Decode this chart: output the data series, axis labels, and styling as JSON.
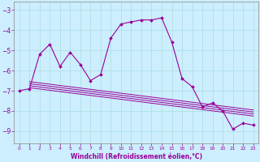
{
  "xlabel": "Windchill (Refroidissement éolien,°C)",
  "xlim": [
    -0.5,
    23.5
  ],
  "ylim": [
    -9.6,
    -2.6
  ],
  "xticks": [
    0,
    1,
    2,
    3,
    4,
    5,
    6,
    7,
    8,
    9,
    10,
    11,
    12,
    13,
    14,
    15,
    16,
    17,
    18,
    19,
    20,
    21,
    22,
    23
  ],
  "yticks": [
    -9,
    -8,
    -7,
    -6,
    -5,
    -4,
    -3
  ],
  "bg_color": "#cceeff",
  "line_color": "#990099",
  "data_y": [
    -7.0,
    -6.9,
    -5.2,
    -4.7,
    -5.8,
    -5.1,
    -5.7,
    -6.5,
    -6.2,
    -4.4,
    -3.7,
    -3.6,
    -3.5,
    -3.5,
    -3.4,
    -4.6,
    -6.4,
    -6.8,
    -7.8,
    -7.6,
    -8.0,
    -8.9,
    -8.6,
    -8.7
  ],
  "trend_lines": [
    {
      "x0": 1,
      "y0": -6.55,
      "x1": 23,
      "y1": -7.95
    },
    {
      "x0": 1,
      "y0": -6.65,
      "x1": 23,
      "y1": -8.05
    },
    {
      "x0": 1,
      "y0": -6.75,
      "x1": 23,
      "y1": -8.15
    },
    {
      "x0": 1,
      "y0": -6.85,
      "x1": 23,
      "y1": -8.25
    }
  ],
  "grid_color": "#aadddd",
  "xlabel_fontsize": 5.5,
  "ytick_fontsize": 5.5,
  "xtick_fontsize": 4.2
}
